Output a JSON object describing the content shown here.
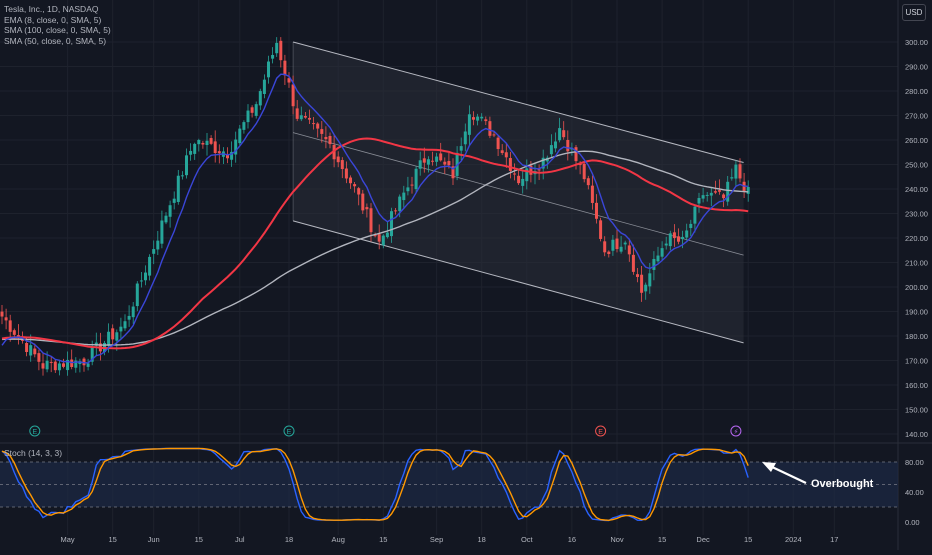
{
  "legend": {
    "symbol": "Tesla, Inc., 1D, NASDAQ",
    "ema8": "EMA (8, close, 0, SMA, 5)",
    "sma100": "SMA (100, close, 0, SMA, 5)",
    "sma50": "SMA (50, close, 0, SMA, 5)"
  },
  "currency": "USD",
  "stoch_label": "Stoch (14, 3, 3)",
  "annotation": "Overbought",
  "colors": {
    "background": "#131722",
    "grid": "#1e222d",
    "up": "#26a69a",
    "down": "#ef5350",
    "ema8": "#3a46d8",
    "sma50": "#f23645",
    "sma100": "#b2b5be",
    "channel_fill": "#2a2e39",
    "stoch_k": "#2962ff",
    "stoch_d": "#ff9800",
    "stoch_band": "#1c2a45"
  },
  "chart_data": [
    {
      "type": "candlestick",
      "title": "Tesla, Inc., 1D, NASDAQ",
      "ylim": [
        135,
        305
      ],
      "yticks": [
        "300.00",
        "290.00",
        "280.00",
        "270.00",
        "260.00",
        "250.00",
        "240.00",
        "230.00",
        "220.00",
        "210.00",
        "200.00",
        "190.00",
        "180.00",
        "170.00",
        "160.00",
        "150.00",
        "140.00"
      ],
      "xticks": [
        "May",
        "15",
        "Jun",
        "15",
        "Jul",
        "18",
        "Aug",
        "15",
        "Sep",
        "18",
        "Oct",
        "16",
        "Nov",
        "15",
        "Dec",
        "15",
        "2024",
        "17"
      ],
      "close_anchors": [
        {
          "d": 0,
          "v": 188
        },
        {
          "d": 10,
          "v": 168
        },
        {
          "d": 20,
          "v": 170
        },
        {
          "d": 30,
          "v": 185
        },
        {
          "d": 40,
          "v": 230
        },
        {
          "d": 47,
          "v": 260
        },
        {
          "d": 55,
          "v": 255
        },
        {
          "d": 62,
          "v": 275
        },
        {
          "d": 67,
          "v": 300
        },
        {
          "d": 72,
          "v": 270
        },
        {
          "d": 80,
          "v": 258
        },
        {
          "d": 86,
          "v": 240
        },
        {
          "d": 92,
          "v": 218
        },
        {
          "d": 98,
          "v": 238
        },
        {
          "d": 104,
          "v": 255
        },
        {
          "d": 110,
          "v": 246
        },
        {
          "d": 114,
          "v": 273
        },
        {
          "d": 120,
          "v": 262
        },
        {
          "d": 126,
          "v": 244
        },
        {
          "d": 132,
          "v": 252
        },
        {
          "d": 136,
          "v": 265
        },
        {
          "d": 142,
          "v": 245
        },
        {
          "d": 147,
          "v": 215
        },
        {
          "d": 152,
          "v": 220
        },
        {
          "d": 156,
          "v": 198
        },
        {
          "d": 162,
          "v": 220
        },
        {
          "d": 166,
          "v": 218
        },
        {
          "d": 171,
          "v": 238
        },
        {
          "d": 176,
          "v": 236
        },
        {
          "d": 179,
          "v": 248
        },
        {
          "d": 182,
          "v": 238
        }
      ],
      "channel": {
        "upper": [
          {
            "d": 71,
            "v": 300
          },
          {
            "d": 176,
            "v": 250
          }
        ],
        "mid": [
          {
            "d": 71,
            "v": 263
          },
          {
            "d": 176,
            "v": 213
          }
        ],
        "lower": [
          {
            "d": 71,
            "v": 227
          },
          {
            "d": 176,
            "v": 178
          }
        ]
      },
      "series": [
        {
          "name": "EMA (8, close, 0, SMA, 5)",
          "style": "line"
        },
        {
          "name": "SMA (50, close, 0, SMA, 5)",
          "style": "line"
        },
        {
          "name": "SMA (100, close, 0, SMA, 5)",
          "style": "line"
        }
      ]
    },
    {
      "type": "line",
      "title": "Stoch (14, 3, 3)",
      "ylim": [
        0,
        100
      ],
      "yticks": [
        "80.00",
        "40.00",
        "0.00"
      ],
      "band": [
        20,
        80
      ],
      "midline": 50,
      "annotation": "Overbought"
    }
  ]
}
